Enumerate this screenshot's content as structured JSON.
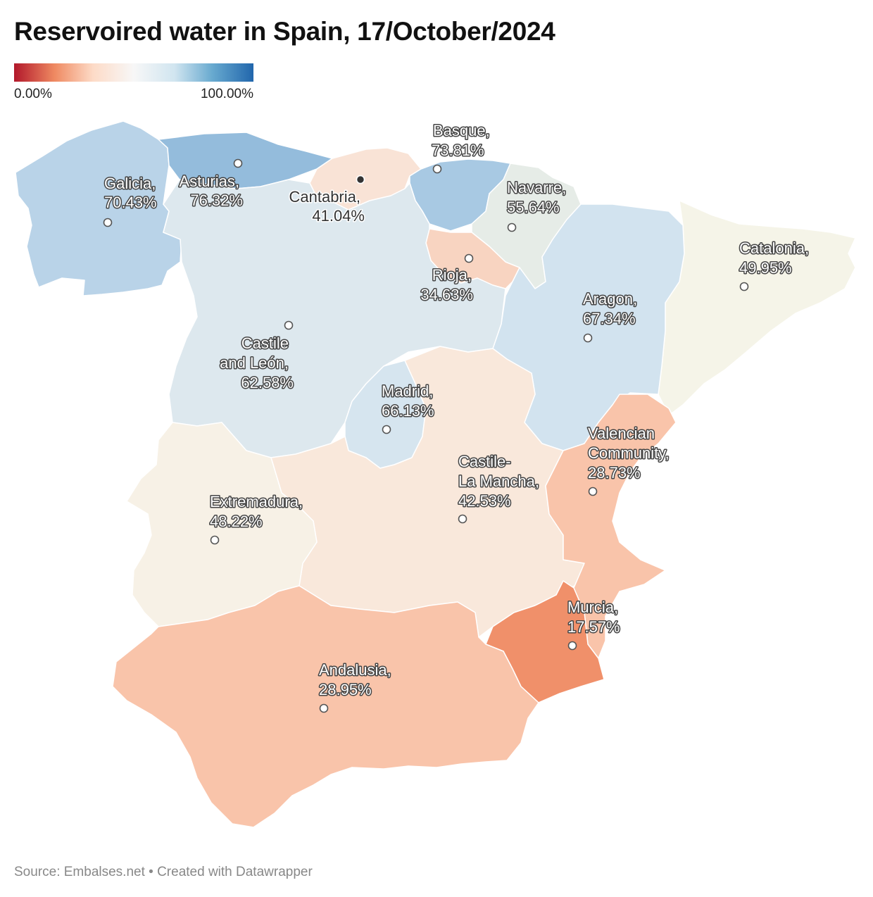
{
  "title": "Reservoired water in Spain, 17/October/2024",
  "legend": {
    "min_label": "0.00%",
    "max_label": "100.00%",
    "colors": [
      "#b2182b",
      "#ef8a62",
      "#fddbc7",
      "#f7f7f7",
      "#d1e5f0",
      "#67a9cf",
      "#2166ac"
    ]
  },
  "source": "Source: Embalses.net • Created with Datawrapper",
  "regions": [
    {
      "id": "galicia",
      "name": "Galicia,",
      "value_label": "70.43%",
      "value": 70.43,
      "color": "#b9d3e8"
    },
    {
      "id": "asturias",
      "name": "Asturias,",
      "value_label": "76.32%",
      "value": 76.32,
      "color": "#94bcdc"
    },
    {
      "id": "cantabria",
      "name": "Cantabria,",
      "value_label": "41.04%",
      "value": 41.04,
      "color": "#f9e3d6"
    },
    {
      "id": "basque",
      "name": "Basque,",
      "value_label": "73.81%",
      "value": 73.81,
      "color": "#a8c9e3"
    },
    {
      "id": "navarre",
      "name": "Navarre,",
      "value_label": "55.64%",
      "value": 55.64,
      "color": "#e6ece7"
    },
    {
      "id": "rioja",
      "name": "Rioja,",
      "value_label": "34.63%",
      "value": 34.63,
      "color": "#f8d4c1"
    },
    {
      "id": "catalonia",
      "name": "Catalonia,",
      "value_label": "49.95%",
      "value": 49.95,
      "color": "#f5f4e8"
    },
    {
      "id": "aragon",
      "name": "Aragon,",
      "value_label": "67.34%",
      "value": 67.34,
      "color": "#d2e3ef"
    },
    {
      "id": "castile-leon",
      "name_line1": "Castile",
      "name_line2": "and León,",
      "value_label": "62.58%",
      "value": 62.58,
      "color": "#dde8ee"
    },
    {
      "id": "madrid",
      "name": "Madrid,",
      "value_label": "66.13%",
      "value": 66.13,
      "color": "#d6e5ef"
    },
    {
      "id": "castile-la-mancha",
      "name_line1": "Castile-",
      "name_line2": "La Mancha,",
      "value_label": "42.53%",
      "value": 42.53,
      "color": "#f9e8db"
    },
    {
      "id": "valencian",
      "name_line1": "Valencian",
      "name_line2": "Community,",
      "value_label": "28.73%",
      "value": 28.73,
      "color": "#f9c4aa"
    },
    {
      "id": "extremadura",
      "name": "Extremadura,",
      "value_label": "48.22%",
      "value": 48.22,
      "color": "#f7f1e6"
    },
    {
      "id": "murcia",
      "name": "Murcia,",
      "value_label": "17.57%",
      "value": 17.57,
      "color": "#f0906a"
    },
    {
      "id": "andalusia",
      "name": "Andalusia,",
      "value_label": "28.95%",
      "value": 28.95,
      "color": "#f9c4aa"
    }
  ]
}
